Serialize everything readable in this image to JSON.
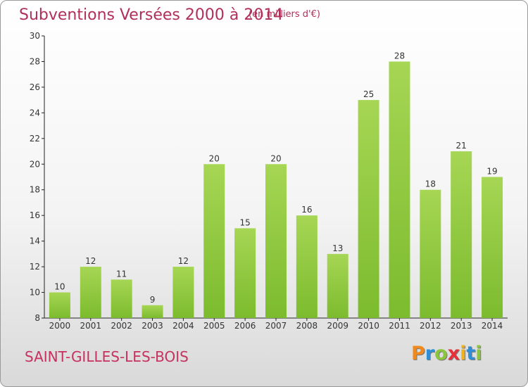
{
  "header": {
    "title": "Subventions Versées 2000 à 2014",
    "subtitle": "(en milliers d'€)"
  },
  "footer": {
    "commune": "SAINT-GILLES-LES-BOIS",
    "logo_letters": [
      "P",
      "r",
      "o",
      "x",
      "i",
      "t",
      "i"
    ],
    "logo_colors": [
      "#f08a1c",
      "#2e8fd8",
      "#8cc63e",
      "#e8303a",
      "#f0b21c",
      "#2e8fd8",
      "#8cc63e"
    ]
  },
  "chart_data": {
    "type": "bar",
    "title": "Subventions Versées 2000 à 2014",
    "subtitle": "(en milliers d'€)",
    "categories": [
      "2000",
      "2001",
      "2002",
      "2003",
      "2004",
      "2005",
      "2006",
      "2007",
      "2008",
      "2009",
      "2010",
      "2011",
      "2012",
      "2013",
      "2014"
    ],
    "values": [
      10,
      12,
      11,
      9,
      12,
      20,
      15,
      20,
      16,
      13,
      25,
      28,
      18,
      21,
      19
    ],
    "ylim": [
      8,
      30
    ],
    "yticks": [
      8,
      10,
      12,
      14,
      16,
      18,
      20,
      22,
      24,
      26,
      28,
      30
    ],
    "grid": false,
    "legend": "none",
    "bar_color": "#7cbb2e",
    "bar_color_light": "#a6d654"
  }
}
